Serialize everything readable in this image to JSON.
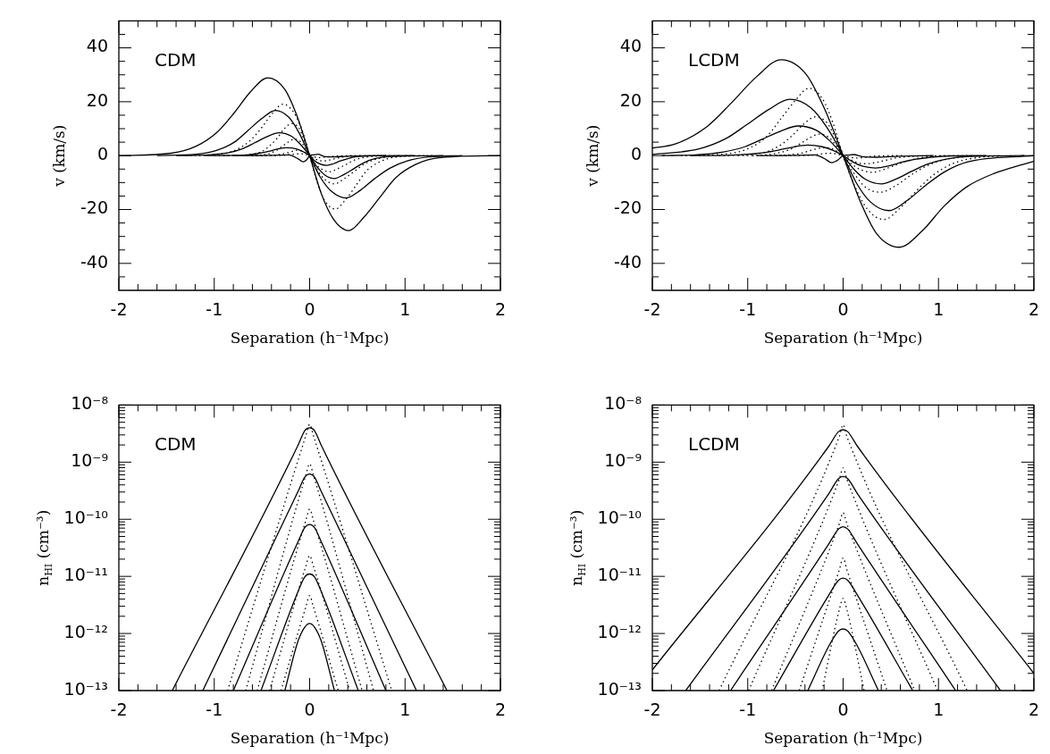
{
  "chart_data": [
    {
      "type": "line",
      "xlabel": "Separation (h⁻¹Mpc)",
      "ylabel": "v (km/s)",
      "annotations": [
        "CDM"
      ],
      "xlim": [
        -2,
        2
      ],
      "ylim": [
        -50,
        50
      ],
      "xticks": [
        -2,
        {
          "value": -1.8,
          "label": null
        },
        {
          "value": -1.6,
          "label": null
        },
        {
          "value": -1.4,
          "label": null
        },
        {
          "value": -1.2,
          "label": null
        },
        -1,
        {
          "value": -0.8,
          "label": null
        },
        {
          "value": -0.6,
          "label": null
        },
        {
          "value": -0.4,
          "label": null
        },
        {
          "value": -0.2,
          "label": null
        },
        0,
        {
          "value": 0.2,
          "label": null
        },
        {
          "value": 0.4,
          "label": null
        },
        {
          "value": 0.6,
          "label": null
        },
        {
          "value": 0.8,
          "label": null
        },
        1,
        {
          "value": 1.2,
          "label": null
        },
        {
          "value": 1.4,
          "label": null
        },
        {
          "value": 1.6,
          "label": null
        },
        {
          "value": 1.8,
          "label": null
        },
        2
      ],
      "yticks": [
        {
          "value": -45,
          "label": null
        },
        -40,
        {
          "value": -35,
          "label": null
        },
        {
          "value": -30,
          "label": null
        },
        {
          "value": -25,
          "label": null
        },
        -20,
        {
          "value": -15,
          "label": null
        },
        {
          "value": -10,
          "label": null
        },
        {
          "value": -5,
          "label": null
        },
        0,
        {
          "value": 5,
          "label": null
        },
        {
          "value": 10,
          "label": null
        },
        {
          "value": 15,
          "label": null
        },
        20,
        {
          "value": 25,
          "label": null
        },
        {
          "value": 30,
          "label": null
        },
        {
          "value": 35,
          "label": null
        },
        40,
        {
          "value": 45,
          "label": null
        }
      ],
      "series": [
        {
          "color": "#000000",
          "line_style": "solid",
          "x": [
            -2,
            -1.45,
            -1.19,
            -0.97,
            -0.79,
            -0.62,
            -0.44,
            -0.26,
            -0.13,
            0,
            0.12,
            0.25,
            0.41,
            0.57,
            0.74,
            0.9,
            1.11,
            1.35,
            2
          ],
          "values": [
            0,
            0.9,
            3.5,
            8.7,
            15.9,
            23.7,
            28.9,
            24.6,
            14.5,
            0,
            -13.9,
            -23.6,
            -27.8,
            -22.8,
            -15.3,
            -8.3,
            -3.3,
            -0.8,
            0
          ]
        },
        {
          "color": "#000000",
          "line_style": "solid",
          "x": [
            -1.6,
            -1.19,
            -0.97,
            -0.79,
            -0.65,
            -0.5,
            -0.36,
            -0.22,
            -0.11,
            0,
            0.11,
            0.23,
            0.38,
            0.53,
            0.68,
            0.84,
            1.03,
            1.25,
            1.6
          ],
          "values": [
            0,
            0.5,
            2,
            5,
            9.2,
            13.8,
            16.8,
            14.3,
            8.4,
            0,
            -7.9,
            -13.3,
            -15.7,
            -12.9,
            -8.6,
            -4.7,
            -1.9,
            -0.5,
            0
          ]
        },
        {
          "color": "#000000",
          "line_style": "solid",
          "x": [
            -1.4,
            -1.06,
            -0.86,
            -0.7,
            -0.58,
            -0.45,
            -0.32,
            -0.19,
            -0.1,
            0,
            0.08,
            0.16,
            0.26,
            0.36,
            0.47,
            0.57,
            0.7,
            0.86,
            1.4
          ],
          "values": [
            0,
            0.3,
            1,
            2.6,
            4.7,
            7,
            8.5,
            7.2,
            4.3,
            0,
            -4.3,
            -7.2,
            -8.5,
            -7,
            -4.7,
            -2.6,
            -1,
            -0.3,
            0
          ]
        },
        {
          "color": "#000000",
          "line_style": "solid",
          "x": [
            -1.1,
            -0.79,
            -0.65,
            -0.53,
            -0.43,
            -0.34,
            -0.24,
            -0.14,
            -0.07,
            0,
            0.05,
            0.11,
            0.18,
            0.25,
            0.32,
            0.4,
            0.49,
            0.59,
            1.1
          ],
          "values": [
            0,
            0.1,
            0.3,
            0.9,
            1.6,
            2.4,
            2.9,
            2.5,
            1.5,
            0,
            -1.8,
            -3.1,
            -3.6,
            -3,
            -2,
            -1.1,
            -0.4,
            -0.1,
            0
          ]
        },
        {
          "color": "#000000",
          "line_style": "solid",
          "x": [
            -0.8,
            -0.4,
            -0.22,
            -0.12,
            -0.07,
            -0.03,
            0,
            0.04,
            0.09,
            0.15,
            0.25,
            0.4,
            0.8
          ],
          "values": [
            0,
            0.1,
            0.3,
            -1.2,
            -2.3,
            -1.5,
            0,
            0.3,
            0.5,
            -0.3,
            -0.5,
            -0.2,
            0
          ]
        },
        {
          "color": "#000000",
          "line_style": "dotted",
          "x": [
            -1.3,
            -0.92,
            -0.76,
            -0.62,
            -0.5,
            -0.39,
            -0.28,
            -0.17,
            -0.08,
            0,
            0.08,
            0.16,
            0.27,
            0.38,
            0.49,
            0.59,
            0.73,
            0.89,
            1.3
          ],
          "values": [
            0,
            0.6,
            2.3,
            5.7,
            10.5,
            15.7,
            19.1,
            16.2,
            9.6,
            0,
            -9.9,
            -16.8,
            -19.8,
            -16.2,
            -10.9,
            -5.9,
            -2.4,
            -0.6,
            0
          ]
        },
        {
          "color": "#000000",
          "line_style": "dotted",
          "x": [
            -1,
            -0.63,
            -0.51,
            -0.42,
            -0.34,
            -0.27,
            -0.19,
            -0.11,
            -0.06,
            0,
            0.08,
            0.16,
            0.26,
            0.36,
            0.47,
            0.57,
            0.7,
            0.86,
            1.2
          ],
          "values": [
            0,
            0.4,
            1.4,
            3.6,
            6.5,
            9.8,
            11.9,
            10.1,
            6,
            0,
            -5.3,
            -8.9,
            -10.5,
            -8.6,
            -5.8,
            -3.2,
            -1.3,
            -0.3,
            0
          ]
        },
        {
          "color": "#000000",
          "line_style": "dotted",
          "x": [
            -0.9,
            -0.53,
            -0.43,
            -0.35,
            -0.29,
            -0.22,
            -0.16,
            -0.1,
            -0.05,
            0,
            0.06,
            0.13,
            0.21,
            0.29,
            0.38,
            0.46,
            0.57,
            0.69,
            0.95
          ],
          "values": [
            0,
            0.2,
            0.7,
            1.9,
            3.4,
            5.1,
            6.2,
            5.3,
            3.1,
            0,
            -3,
            -5.1,
            -6,
            -4.9,
            -3.3,
            -1.8,
            -0.7,
            -0.2,
            0
          ]
        },
        {
          "color": "#000000",
          "line_style": "dotted",
          "x": [
            -0.7,
            -0.43,
            -0.36,
            -0.29,
            -0.23,
            -0.18,
            -0.13,
            -0.08,
            -0.04,
            0,
            0.05,
            0.09,
            0.15,
            0.21,
            0.27,
            0.33,
            0.41,
            0.5,
            0.75
          ],
          "values": [
            0,
            0.1,
            0.2,
            0.6,
            1.1,
            1.6,
            2,
            1.7,
            1,
            0,
            -1,
            -1.7,
            -2,
            -1.6,
            -1.1,
            -0.6,
            -0.2,
            -0.1,
            0
          ]
        },
        {
          "color": "#000000",
          "line_style": "dotted",
          "x": [
            -0.6,
            -0.3,
            -0.2,
            -0.1,
            -0.05,
            0,
            0.05,
            0.1,
            0.2,
            0.3,
            0.55
          ],
          "values": [
            0,
            0.1,
            0.4,
            0.7,
            0.5,
            0,
            -0.5,
            -0.7,
            -0.4,
            -0.1,
            0
          ]
        }
      ]
    },
    {
      "type": "line",
      "xlabel": "Separation (h⁻¹Mpc)",
      "ylabel": "v (km/s)",
      "annotations": [
        "LCDM"
      ],
      "xlim": [
        -2,
        2
      ],
      "ylim": [
        -50,
        50
      ],
      "xticks": [
        -2,
        {
          "value": -1.8,
          "label": null
        },
        {
          "value": -1.6,
          "label": null
        },
        {
          "value": -1.4,
          "label": null
        },
        {
          "value": -1.2,
          "label": null
        },
        -1,
        {
          "value": -0.8,
          "label": null
        },
        {
          "value": -0.6,
          "label": null
        },
        {
          "value": -0.4,
          "label": null
        },
        {
          "value": -0.2,
          "label": null
        },
        0,
        {
          "value": 0.2,
          "label": null
        },
        {
          "value": 0.4,
          "label": null
        },
        {
          "value": 0.6,
          "label": null
        },
        {
          "value": 0.8,
          "label": null
        },
        1,
        {
          "value": 1.2,
          "label": null
        },
        {
          "value": 1.4,
          "label": null
        },
        {
          "value": 1.6,
          "label": null
        },
        {
          "value": 1.8,
          "label": null
        },
        2
      ],
      "yticks": [
        {
          "value": -45,
          "label": null
        },
        -40,
        {
          "value": -35,
          "label": null
        },
        {
          "value": -30,
          "label": null
        },
        {
          "value": -25,
          "label": null
        },
        -20,
        {
          "value": -15,
          "label": null
        },
        {
          "value": -10,
          "label": null
        },
        {
          "value": -5,
          "label": null
        },
        0,
        {
          "value": 5,
          "label": null
        },
        {
          "value": 10,
          "label": null
        },
        {
          "value": 15,
          "label": null
        },
        20,
        {
          "value": 25,
          "label": null
        },
        {
          "value": 30,
          "label": null
        },
        {
          "value": 35,
          "label": null
        },
        40,
        {
          "value": 45,
          "label": null
        }
      ],
      "series": [
        {
          "color": "#000000",
          "line_style": "solid",
          "x": [
            -2,
            -1.76,
            -1.43,
            -1.17,
            -0.91,
            -0.65,
            -0.39,
            -0.2,
            0,
            0.18,
            0.35,
            0.59,
            0.83,
            1.06,
            1.3,
            1.59,
            1.8,
            2
          ],
          "values": [
            2.8,
            4.3,
            10.7,
            19.6,
            29.2,
            35.6,
            30.3,
            17.8,
            0,
            -17,
            -28.9,
            -34,
            -27.9,
            -18.7,
            -11.5,
            -6.5,
            -4.1,
            -2.1
          ]
        },
        {
          "color": "#000000",
          "line_style": "solid",
          "x": [
            -2,
            -1.51,
            -1.23,
            -1.01,
            -0.78,
            -0.56,
            -0.34,
            -0.17,
            0,
            0.14,
            0.29,
            0.48,
            0.67,
            0.86,
            1.06,
            1.3,
            2
          ],
          "values": [
            0.4,
            2.5,
            6.3,
            11.5,
            17.1,
            20.9,
            17.8,
            10.5,
            0,
            -10.2,
            -17.3,
            -20.4,
            -16.7,
            -11.2,
            -6.1,
            -2.4,
            0
          ]
        },
        {
          "color": "#000000",
          "line_style": "solid",
          "x": [
            -1.9,
            -1.55,
            -1.27,
            -1.03,
            -0.85,
            -0.66,
            -0.47,
            -0.28,
            -0.14,
            0,
            0.12,
            0.24,
            0.4,
            0.56,
            0.72,
            0.88,
            1.08,
            1.32,
            1.9
          ],
          "values": [
            0,
            0.3,
            1.3,
            3.3,
            6.1,
            9,
            11,
            9.4,
            5.5,
            0,
            -5.3,
            -8.9,
            -10.5,
            -8.6,
            -5.8,
            -3.2,
            -1.3,
            -0.3,
            0
          ]
        },
        {
          "color": "#000000",
          "line_style": "solid",
          "x": [
            -1.6,
            -1.22,
            -1,
            -0.81,
            -0.67,
            -0.52,
            -0.37,
            -0.22,
            -0.11,
            0,
            0.1,
            0.2,
            0.34,
            0.48,
            0.61,
            0.75,
            0.92,
            1.12,
            1.5
          ],
          "values": [
            0,
            0.1,
            0.5,
            1.2,
            2.1,
            3.2,
            3.9,
            3.3,
            2,
            0,
            -2.3,
            -3.9,
            -4.6,
            -3.8,
            -2.5,
            -1.4,
            -0.6,
            -0.1,
            0
          ]
        },
        {
          "color": "#000000",
          "line_style": "solid",
          "x": [
            -0.9,
            -0.5,
            -0.3,
            -0.2,
            -0.12,
            -0.05,
            0,
            0.05,
            0.11,
            0.2,
            0.35,
            0.6,
            0.95
          ],
          "values": [
            0,
            0.1,
            0.3,
            -1,
            -2.6,
            -1.5,
            0,
            0.2,
            0.4,
            -0.4,
            -0.6,
            -0.2,
            0
          ]
        },
        {
          "color": "#000000",
          "line_style": "dotted",
          "x": [
            -1.7,
            -1.19,
            -0.97,
            -0.79,
            -0.65,
            -0.5,
            -0.36,
            -0.22,
            -0.11,
            0,
            0.13,
            0.26,
            0.43,
            0.6,
            0.77,
            0.95,
            1.16,
            1.42,
            1.8
          ],
          "values": [
            0,
            0.8,
            3,
            7.5,
            13.8,
            20.5,
            25,
            21.3,
            12.5,
            0,
            -11.9,
            -20.1,
            -23.7,
            -19.4,
            -13,
            -7.1,
            -2.8,
            -0.7,
            0
          ]
        },
        {
          "color": "#000000",
          "line_style": "dotted",
          "x": [
            -1.3,
            -0.96,
            -0.78,
            -0.64,
            -0.52,
            -0.41,
            -0.29,
            -0.17,
            -0.09,
            0,
            0.12,
            0.23,
            0.39,
            0.55,
            0.7,
            0.86,
            1.05,
            1.29,
            1.65
          ],
          "values": [
            0,
            0.4,
            1.7,
            4.3,
            7.9,
            11.8,
            14.4,
            12.2,
            7.2,
            0,
            -6.8,
            -11.6,
            -13.6,
            -11.2,
            -7.5,
            -4.1,
            -1.6,
            -0.4,
            0
          ]
        },
        {
          "color": "#000000",
          "line_style": "dotted",
          "x": [
            -1.1,
            -0.83,
            -0.68,
            -0.55,
            -0.45,
            -0.35,
            -0.25,
            -0.15,
            -0.08,
            0,
            0.09,
            0.19,
            0.31,
            0.43,
            0.56,
            0.68,
            0.84,
            1.02,
            1.35
          ],
          "values": [
            0,
            0.2,
            1,
            2.4,
            4.4,
            6.6,
            8,
            6.8,
            4,
            0,
            -3.1,
            -5.3,
            -6.2,
            -5.1,
            -3.4,
            -1.9,
            -0.7,
            -0.2,
            0
          ]
        },
        {
          "color": "#000000",
          "line_style": "dotted",
          "x": [
            -0.95,
            -0.66,
            -0.54,
            -0.44,
            -0.36,
            -0.28,
            -0.2,
            -0.12,
            -0.06,
            0,
            0.08,
            0.15,
            0.25,
            0.35,
            0.45,
            0.55,
            0.68,
            0.83,
            1.1
          ],
          "values": [
            0,
            0.1,
            0.4,
            0.9,
            1.7,
            2.5,
            3,
            2.6,
            1.5,
            0,
            -1.5,
            -2.6,
            -3,
            -2.5,
            -1.7,
            -0.9,
            -0.4,
            -0.1,
            0
          ]
        },
        {
          "color": "#000000",
          "line_style": "dotted",
          "x": [
            -0.7,
            -0.35,
            -0.25,
            -0.15,
            -0.07,
            0,
            0.07,
            0.15,
            0.25,
            0.35,
            0.65
          ],
          "values": [
            0,
            0.1,
            0.5,
            0.9,
            0.6,
            0,
            -0.6,
            -0.9,
            -0.5,
            -0.1,
            0
          ]
        }
      ]
    },
    {
      "type": "line",
      "xlabel": "Separation (h⁻¹Mpc)",
      "ylabel": "n$_{HI}$ (cm⁻³)",
      "annotations": [
        "CDM"
      ],
      "log": "y",
      "xlim": [
        -2,
        2
      ],
      "ylim": [
        1e-13,
        1e-08
      ],
      "xticks": [
        -2,
        {
          "value": -1.8,
          "label": null
        },
        {
          "value": -1.6,
          "label": null
        },
        {
          "value": -1.4,
          "label": null
        },
        {
          "value": -1.2,
          "label": null
        },
        -1,
        {
          "value": -0.8,
          "label": null
        },
        {
          "value": -0.6,
          "label": null
        },
        {
          "value": -0.4,
          "label": null
        },
        {
          "value": -0.2,
          "label": null
        },
        0,
        {
          "value": 0.2,
          "label": null
        },
        {
          "value": 0.4,
          "label": null
        },
        {
          "value": 0.6,
          "label": null
        },
        {
          "value": 0.8,
          "label": null
        },
        1,
        {
          "value": 1.2,
          "label": null
        },
        {
          "value": 1.4,
          "label": null
        },
        {
          "value": 1.6,
          "label": null
        },
        {
          "value": 1.8,
          "label": null
        },
        2
      ],
      "yticks": [
        {
          "value": 1e-13,
          "label": "10⁻¹³"
        },
        {
          "value": 2e-13,
          "label": null
        },
        {
          "value": 3e-13,
          "label": null
        },
        {
          "value": 4e-13,
          "label": null
        },
        {
          "value": 5e-13,
          "label": null
        },
        {
          "value": 6e-13,
          "label": null
        },
        {
          "value": 7e-13,
          "label": null
        },
        {
          "value": 8e-13,
          "label": null
        },
        {
          "value": 9e-13,
          "label": null
        },
        {
          "value": 1e-12,
          "label": "10⁻¹²"
        },
        {
          "value": 2e-12,
          "label": null
        },
        {
          "value": 3e-12,
          "label": null
        },
        {
          "value": 4e-12,
          "label": null
        },
        {
          "value": 5e-12,
          "label": null
        },
        {
          "value": 6e-12,
          "label": null
        },
        {
          "value": 7e-12,
          "label": null
        },
        {
          "value": 8e-12,
          "label": null
        },
        {
          "value": 9e-12,
          "label": null
        },
        {
          "value": 1e-11,
          "label": "10⁻¹¹"
        },
        {
          "value": 2e-11,
          "label": null
        },
        {
          "value": 3e-11,
          "label": null
        },
        {
          "value": 4e-11,
          "label": null
        },
        {
          "value": 5e-11,
          "label": null
        },
        {
          "value": 6e-11,
          "label": null
        },
        {
          "value": 7e-11,
          "label": null
        },
        {
          "value": 8e-11,
          "label": null
        },
        {
          "value": 9e-11,
          "label": null
        },
        {
          "value": 1e-10,
          "label": "10⁻¹⁰"
        },
        {
          "value": 2e-10,
          "label": null
        },
        {
          "value": 3e-10,
          "label": null
        },
        {
          "value": 4e-10,
          "label": null
        },
        {
          "value": 5e-10,
          "label": null
        },
        {
          "value": 6e-10,
          "label": null
        },
        {
          "value": 7e-10,
          "label": null
        },
        {
          "value": 8e-10,
          "label": null
        },
        {
          "value": 9e-10,
          "label": null
        },
        {
          "value": 1e-09,
          "label": "10⁻⁹"
        },
        {
          "value": 2e-09,
          "label": null
        },
        {
          "value": 3e-09,
          "label": null
        },
        {
          "value": 4e-09,
          "label": null
        },
        {
          "value": 5e-09,
          "label": null
        },
        {
          "value": 6e-09,
          "label": null
        },
        {
          "value": 7e-09,
          "label": null
        },
        {
          "value": 8e-09,
          "label": null
        },
        {
          "value": 9e-09,
          "label": null
        },
        {
          "value": 1e-08,
          "label": "10⁻⁸"
        }
      ],
      "series": [
        {
          "color": "#000000",
          "line_style": "solid",
          "x": [
            -1.44,
            -0.12,
            -0.05,
            0,
            0.05,
            0.12,
            1.44
          ],
          "values": [
            1e-13,
            2e-09,
            3.6e-09,
            4e-09,
            3.6e-09,
            2e-09,
            1e-13
          ]
        },
        {
          "color": "#000000",
          "line_style": "solid",
          "x": [
            -1.12,
            -0.12,
            -0.05,
            0,
            0.05,
            0.12,
            1.12
          ],
          "values": [
            1e-13,
            3.1e-10,
            5.5e-10,
            6.2e-10,
            5.5e-10,
            3.1e-10,
            1e-13
          ]
        },
        {
          "color": "#000000",
          "line_style": "solid",
          "x": [
            -0.8,
            -0.12,
            -0.05,
            0,
            0.05,
            0.12,
            0.8
          ],
          "values": [
            1e-13,
            4.1e-11,
            7.2e-11,
            8.1e-11,
            7.2e-11,
            4.1e-11,
            1e-13
          ]
        },
        {
          "color": "#000000",
          "line_style": "solid",
          "x": [
            -0.51,
            -0.12,
            -0.05,
            0,
            0.05,
            0.12,
            0.51
          ],
          "values": [
            1e-13,
            5.5e-12,
            9.8e-12,
            1.1e-11,
            9.8e-12,
            5.5e-12,
            1e-13
          ]
        },
        {
          "color": "#000000",
          "line_style": "solid",
          "x": [
            -0.26,
            -0.12,
            -0.05,
            0,
            0.05,
            0.12,
            0.26
          ],
          "values": [
            1e-13,
            7.5e-13,
            1.3e-12,
            1.5e-12,
            1.3e-12,
            7.5e-13,
            1e-13
          ]
        },
        {
          "color": "#000000",
          "line_style": "dotted",
          "x": [
            -0.86,
            -0.04,
            0,
            0.04,
            0.86
          ],
          "values": [
            1e-13,
            2.9e-09,
            4.6e-09,
            2.9e-09,
            1e-13
          ]
        },
        {
          "color": "#000000",
          "line_style": "dotted",
          "x": [
            -0.67,
            -0.04,
            0,
            0.04,
            0.67
          ],
          "values": [
            1e-13,
            5.9e-10,
            9.3e-10,
            5.9e-10,
            1e-13
          ]
        },
        {
          "color": "#000000",
          "line_style": "dotted",
          "x": [
            -0.55,
            -0.04,
            0,
            0.04,
            0.55
          ],
          "values": [
            1e-13,
            9.5e-11,
            1.5e-10,
            9.5e-11,
            1e-13
          ]
        },
        {
          "color": "#000000",
          "line_style": "dotted",
          "x": [
            -0.42,
            -0.04,
            0,
            0.04,
            0.42
          ],
          "values": [
            1e-13,
            1.5e-11,
            2.3e-11,
            1.5e-11,
            1e-13
          ]
        },
        {
          "color": "#000000",
          "line_style": "dotted",
          "x": [
            -0.3,
            -0.04,
            0,
            0.04,
            0.3
          ],
          "values": [
            1e-13,
            2.9e-12,
            4.6e-12,
            2.9e-12,
            1e-13
          ]
        }
      ]
    },
    {
      "type": "line",
      "xlabel": "Separation (h⁻¹Mpc)",
      "ylabel": "n$_{HI}$ (cm⁻³)",
      "annotations": [
        "LCDM"
      ],
      "log": "y",
      "xlim": [
        -2,
        2
      ],
      "ylim": [
        1e-13,
        1e-08
      ],
      "xticks": [
        -2,
        {
          "value": -1.8,
          "label": null
        },
        {
          "value": -1.6,
          "label": null
        },
        {
          "value": -1.4,
          "label": null
        },
        {
          "value": -1.2,
          "label": null
        },
        -1,
        {
          "value": -0.8,
          "label": null
        },
        {
          "value": -0.6,
          "label": null
        },
        {
          "value": -0.4,
          "label": null
        },
        {
          "value": -0.2,
          "label": null
        },
        0,
        {
          "value": 0.2,
          "label": null
        },
        {
          "value": 0.4,
          "label": null
        },
        {
          "value": 0.6,
          "label": null
        },
        {
          "value": 0.8,
          "label": null
        },
        1,
        {
          "value": 1.2,
          "label": null
        },
        {
          "value": 1.4,
          "label": null
        },
        {
          "value": 1.6,
          "label": null
        },
        {
          "value": 1.8,
          "label": null
        },
        2
      ],
      "yticks": [
        {
          "value": 1e-13,
          "label": "10⁻¹³"
        },
        {
          "value": 2e-13,
          "label": null
        },
        {
          "value": 3e-13,
          "label": null
        },
        {
          "value": 4e-13,
          "label": null
        },
        {
          "value": 5e-13,
          "label": null
        },
        {
          "value": 6e-13,
          "label": null
        },
        {
          "value": 7e-13,
          "label": null
        },
        {
          "value": 8e-13,
          "label": null
        },
        {
          "value": 9e-13,
          "label": null
        },
        {
          "value": 1e-12,
          "label": "10⁻¹²"
        },
        {
          "value": 2e-12,
          "label": null
        },
        {
          "value": 3e-12,
          "label": null
        },
        {
          "value": 4e-12,
          "label": null
        },
        {
          "value": 5e-12,
          "label": null
        },
        {
          "value": 6e-12,
          "label": null
        },
        {
          "value": 7e-12,
          "label": null
        },
        {
          "value": 8e-12,
          "label": null
        },
        {
          "value": 9e-12,
          "label": null
        },
        {
          "value": 1e-11,
          "label": "10⁻¹¹"
        },
        {
          "value": 2e-11,
          "label": null
        },
        {
          "value": 3e-11,
          "label": null
        },
        {
          "value": 4e-11,
          "label": null
        },
        {
          "value": 5e-11,
          "label": null
        },
        {
          "value": 6e-11,
          "label": null
        },
        {
          "value": 7e-11,
          "label": null
        },
        {
          "value": 8e-11,
          "label": null
        },
        {
          "value": 9e-11,
          "label": null
        },
        {
          "value": 1e-10,
          "label": "10⁻¹⁰"
        },
        {
          "value": 2e-10,
          "label": null
        },
        {
          "value": 3e-10,
          "label": null
        },
        {
          "value": 4e-10,
          "label": null
        },
        {
          "value": 5e-10,
          "label": null
        },
        {
          "value": 6e-10,
          "label": null
        },
        {
          "value": 7e-10,
          "label": null
        },
        {
          "value": 8e-10,
          "label": null
        },
        {
          "value": 9e-10,
          "label": null
        },
        {
          "value": 1e-09,
          "label": "10⁻⁹"
        },
        {
          "value": 2e-09,
          "label": null
        },
        {
          "value": 3e-09,
          "label": null
        },
        {
          "value": 4e-09,
          "label": null
        },
        {
          "value": 5e-09,
          "label": null
        },
        {
          "value": 6e-09,
          "label": null
        },
        {
          "value": 7e-09,
          "label": null
        },
        {
          "value": 8e-09,
          "label": null
        },
        {
          "value": 9e-09,
          "label": null
        },
        {
          "value": 1e-08,
          "label": "10⁻⁸"
        }
      ],
      "series": [
        {
          "color": "#000000",
          "line_style": "solid",
          "x": [
            -2,
            -0.15,
            -0.05,
            0,
            0.05,
            0.15,
            2
          ],
          "values": [
            2.3e-13,
            1.9e-09,
            3.4e-09,
            3.7e-09,
            3.4e-09,
            1.9e-09,
            2e-13
          ]
        },
        {
          "color": "#000000",
          "line_style": "solid",
          "x": [
            -1.65,
            -0.15,
            -0.05,
            0,
            0.05,
            0.15,
            1.65
          ],
          "values": [
            1e-13,
            2.8e-10,
            5.1e-10,
            5.6e-10,
            5.1e-10,
            2.8e-10,
            1e-13
          ]
        },
        {
          "color": "#000000",
          "line_style": "solid",
          "x": [
            -1.18,
            -0.15,
            -0.05,
            0,
            0.05,
            0.15,
            1.18
          ],
          "values": [
            1e-13,
            3.7e-11,
            6.7e-11,
            7.4e-11,
            6.7e-11,
            3.7e-11,
            1e-13
          ]
        },
        {
          "color": "#000000",
          "line_style": "solid",
          "x": [
            -0.73,
            -0.15,
            -0.05,
            0,
            0.05,
            0.15,
            0.73
          ],
          "values": [
            1e-13,
            4.7e-12,
            8.5e-12,
            9.3e-12,
            8.5e-12,
            4.7e-12,
            1e-13
          ]
        },
        {
          "color": "#000000",
          "line_style": "solid",
          "x": [
            -0.37,
            -0.15,
            -0.05,
            0,
            0.05,
            0.15,
            0.37
          ],
          "values": [
            1e-13,
            6e-13,
            1.1e-12,
            1.2e-12,
            1.1e-12,
            6e-13,
            1e-13
          ]
        },
        {
          "color": "#000000",
          "line_style": "dotted",
          "x": [
            -1.3,
            -0.04,
            0,
            0.04,
            1.3
          ],
          "values": [
            1e-13,
            2.8e-09,
            4.5e-09,
            2.8e-09,
            1e-13
          ]
        },
        {
          "color": "#000000",
          "line_style": "dotted",
          "x": [
            -0.99,
            -0.04,
            0,
            0.04,
            0.99
          ],
          "values": [
            1e-13,
            5e-10,
            7.9e-10,
            5e-10,
            1e-13
          ]
        },
        {
          "color": "#000000",
          "line_style": "dotted",
          "x": [
            -0.75,
            -0.04,
            0,
            0.04,
            0.75
          ],
          "values": [
            1e-13,
            8.3e-11,
            1.3e-10,
            8.3e-11,
            1e-13
          ]
        },
        {
          "color": "#000000",
          "line_style": "dotted",
          "x": [
            -0.46,
            -0.04,
            0,
            0.04,
            0.46
          ],
          "values": [
            1e-13,
            1.3e-11,
            2.1e-11,
            1.3e-11,
            1e-13
          ]
        },
        {
          "color": "#000000",
          "line_style": "dotted",
          "x": [
            -0.22,
            -0.04,
            0,
            0.04,
            0.22
          ],
          "values": [
            1e-13,
            2.6e-12,
            4.1e-12,
            2.6e-12,
            1e-13
          ]
        }
      ]
    }
  ]
}
